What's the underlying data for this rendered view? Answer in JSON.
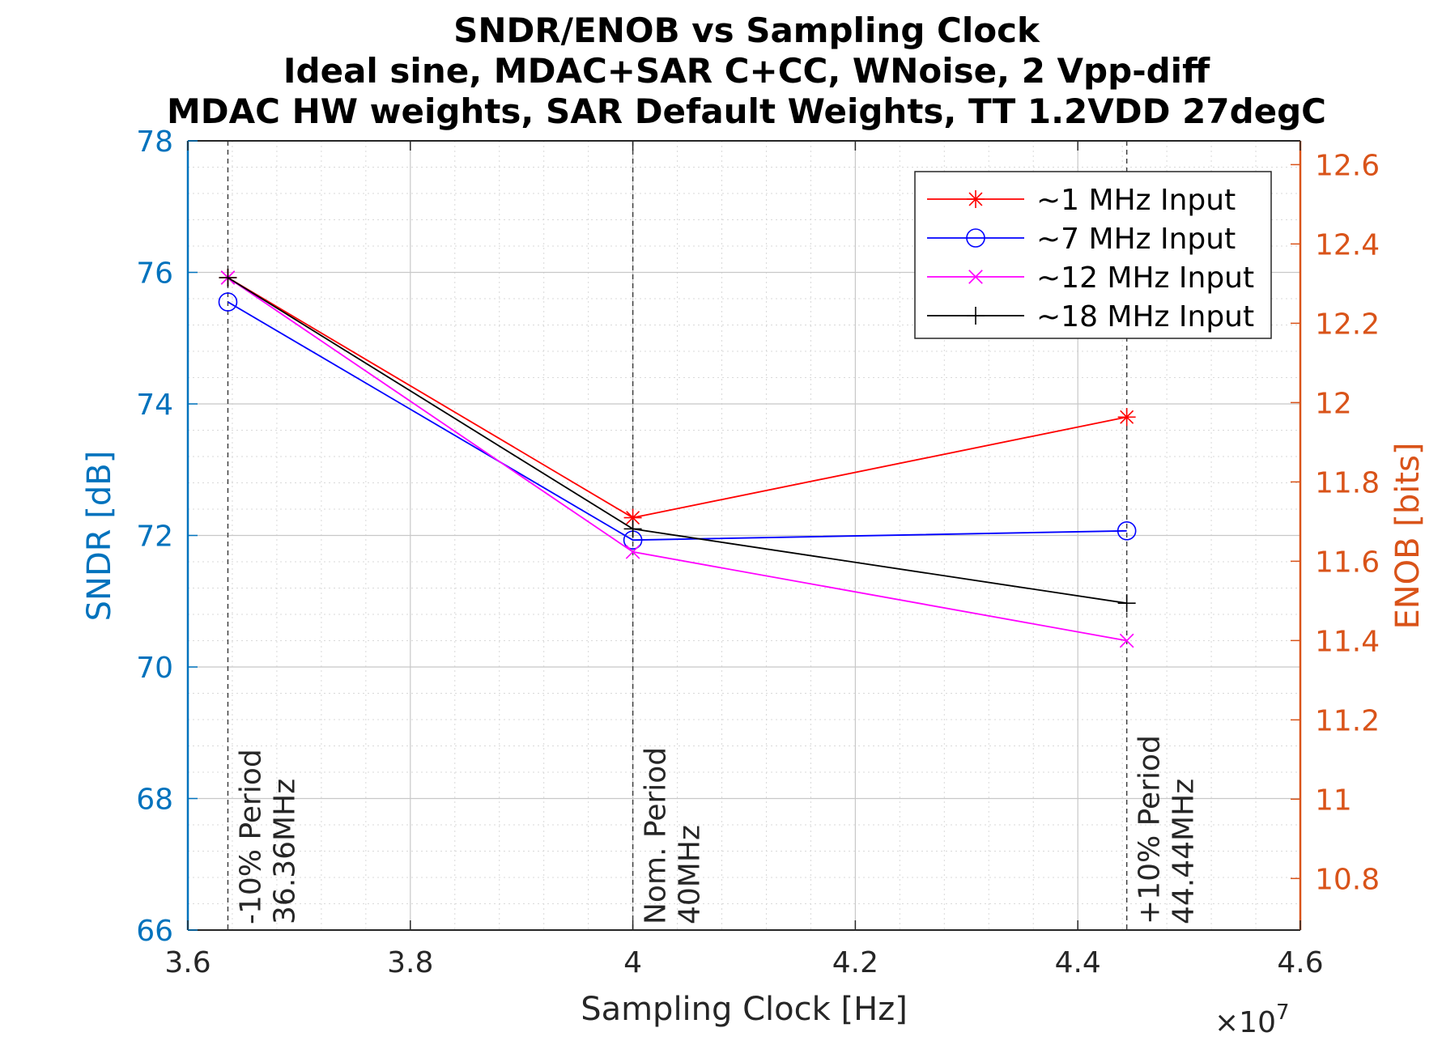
{
  "chart_data": {
    "type": "line",
    "title": [
      "SNDR/ENOB vs Sampling Clock",
      "Ideal sine, MDAC+SAR C+CC, WNoise, 2 Vpp-diff",
      "MDAC HW weights, SAR Default Weights, TT 1.2VDD 27degC"
    ],
    "xlabel": "Sampling Clock [Hz]",
    "ylabel": "SNDR [dB]",
    "ylabel_right": "ENOB [bits]",
    "x_exponent_label": "×10",
    "x_exponent_power": "7",
    "xlim": [
      36000000,
      46000000
    ],
    "ylim": [
      66,
      78
    ],
    "ylim_right": [
      10.67,
      12.66
    ],
    "x_ticks": [
      36000000,
      38000000,
      40000000,
      42000000,
      44000000,
      46000000
    ],
    "x_tick_labels": [
      "3.6",
      "3.8",
      "4",
      "4.2",
      "4.4",
      "4.6"
    ],
    "y_ticks": [
      66,
      68,
      70,
      72,
      74,
      76,
      78
    ],
    "y_tick_labels": [
      "66",
      "68",
      "70",
      "72",
      "74",
      "76",
      "78"
    ],
    "y_right_ticks": [
      10.8,
      11,
      11.2,
      11.4,
      11.6,
      11.8,
      12,
      12.2,
      12.4,
      12.6
    ],
    "y_right_tick_labels": [
      "10.8",
      "11",
      "11.2",
      "11.4",
      "11.6",
      "11.8",
      "12",
      "12.2",
      "12.4",
      "12.6"
    ],
    "x": [
      36360000,
      40000000,
      44440000
    ],
    "series": [
      {
        "name": "~1 MHz Input",
        "values": [
          75.92,
          72.27,
          73.8
        ],
        "color": "#ff0000",
        "marker": "asterisk"
      },
      {
        "name": "~7 MHz Input",
        "values": [
          75.55,
          71.93,
          72.07
        ],
        "color": "#0000ff",
        "marker": "circle"
      },
      {
        "name": "~12 MHz Input",
        "values": [
          75.92,
          71.75,
          70.4
        ],
        "color": "#ff00ff",
        "marker": "x"
      },
      {
        "name": "~18 MHz Input",
        "values": [
          75.92,
          72.1,
          70.97
        ],
        "color": "#000000",
        "marker": "plus"
      }
    ],
    "vlines": [
      {
        "x": 36360000,
        "label1": "-10% Period",
        "label2": "36.36MHz"
      },
      {
        "x": 40000000,
        "label1": "Nom. Period",
        "label2": "40MHz"
      },
      {
        "x": 44440000,
        "label1": "+10% Period",
        "label2": "44.44MHz"
      }
    ],
    "legend_position": "top-right",
    "grid": true,
    "minor_grid": true,
    "colors": {
      "left_axis": "#0072bd",
      "right_axis": "#d95319",
      "tick_text": "#262626",
      "grid": "#d9d9d9"
    }
  }
}
